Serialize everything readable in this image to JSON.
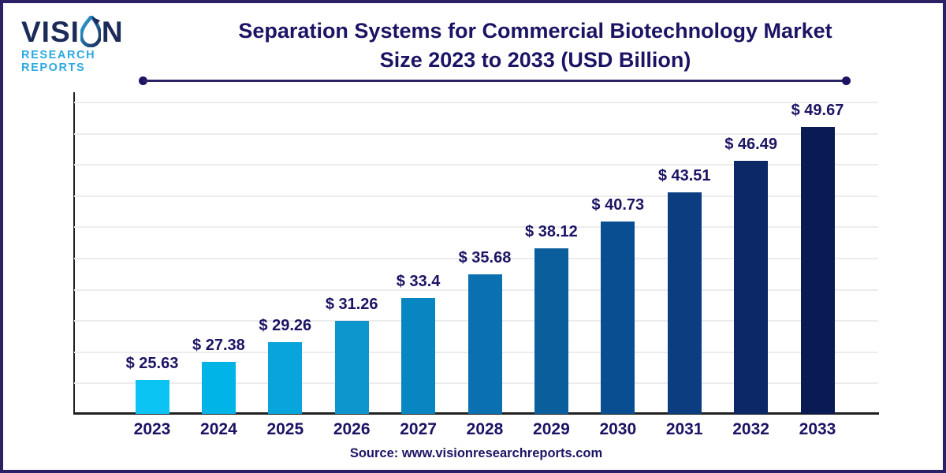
{
  "brand": {
    "name_prefix": "VISI",
    "name_suffix": "N",
    "subtitle": "RESEARCH REPORTS"
  },
  "title": {
    "line1": "Separation Systems for Commercial Biotechnology Market",
    "line2": "Size 2023 to 2033 (USD Billion)"
  },
  "source": "Source: www.visionresearchreports.com",
  "colors": {
    "title_navy": "#1b1464",
    "brand_navy": "#1c2a58",
    "brand_blue": "#2ba9e0",
    "frame_navy": "#2b2265",
    "axis": "#1f1f1f",
    "gridline": "#ececec"
  },
  "chart_data": {
    "type": "bar",
    "title": "Separation Systems for Commercial Biotechnology Market Size 2023 to 2033 (USD Billion)",
    "unit": "USD Billion",
    "xlabel": "",
    "ylabel": "",
    "categories": [
      "2023",
      "2024",
      "2025",
      "2026",
      "2027",
      "2028",
      "2029",
      "2030",
      "2031",
      "2032",
      "2033"
    ],
    "values": [
      25.63,
      27.38,
      29.26,
      31.26,
      33.4,
      35.68,
      38.12,
      40.73,
      43.51,
      46.49,
      49.67
    ],
    "value_labels": [
      "$ 25.63",
      "$ 27.38",
      "$ 29.26",
      "$ 31.26",
      "$ 33.4",
      "$ 35.68",
      "$ 38.12",
      "$ 40.73",
      "$ 43.51",
      "$ 46.49",
      "$ 49.67"
    ],
    "bar_colors": [
      "#0bc4f3",
      "#00b4e8",
      "#0aa4dc",
      "#0d96ce",
      "#0886c2",
      "#0a70b0",
      "#0b5e9c",
      "#0a4e92",
      "#0c3d80",
      "#0d2866",
      "#0a1a52"
    ],
    "ylim": [
      22.4,
      52.1
    ],
    "grid": "horizontal",
    "gridline_count": 10,
    "legend_position": "none",
    "y_tick_labels_visible": false
  }
}
